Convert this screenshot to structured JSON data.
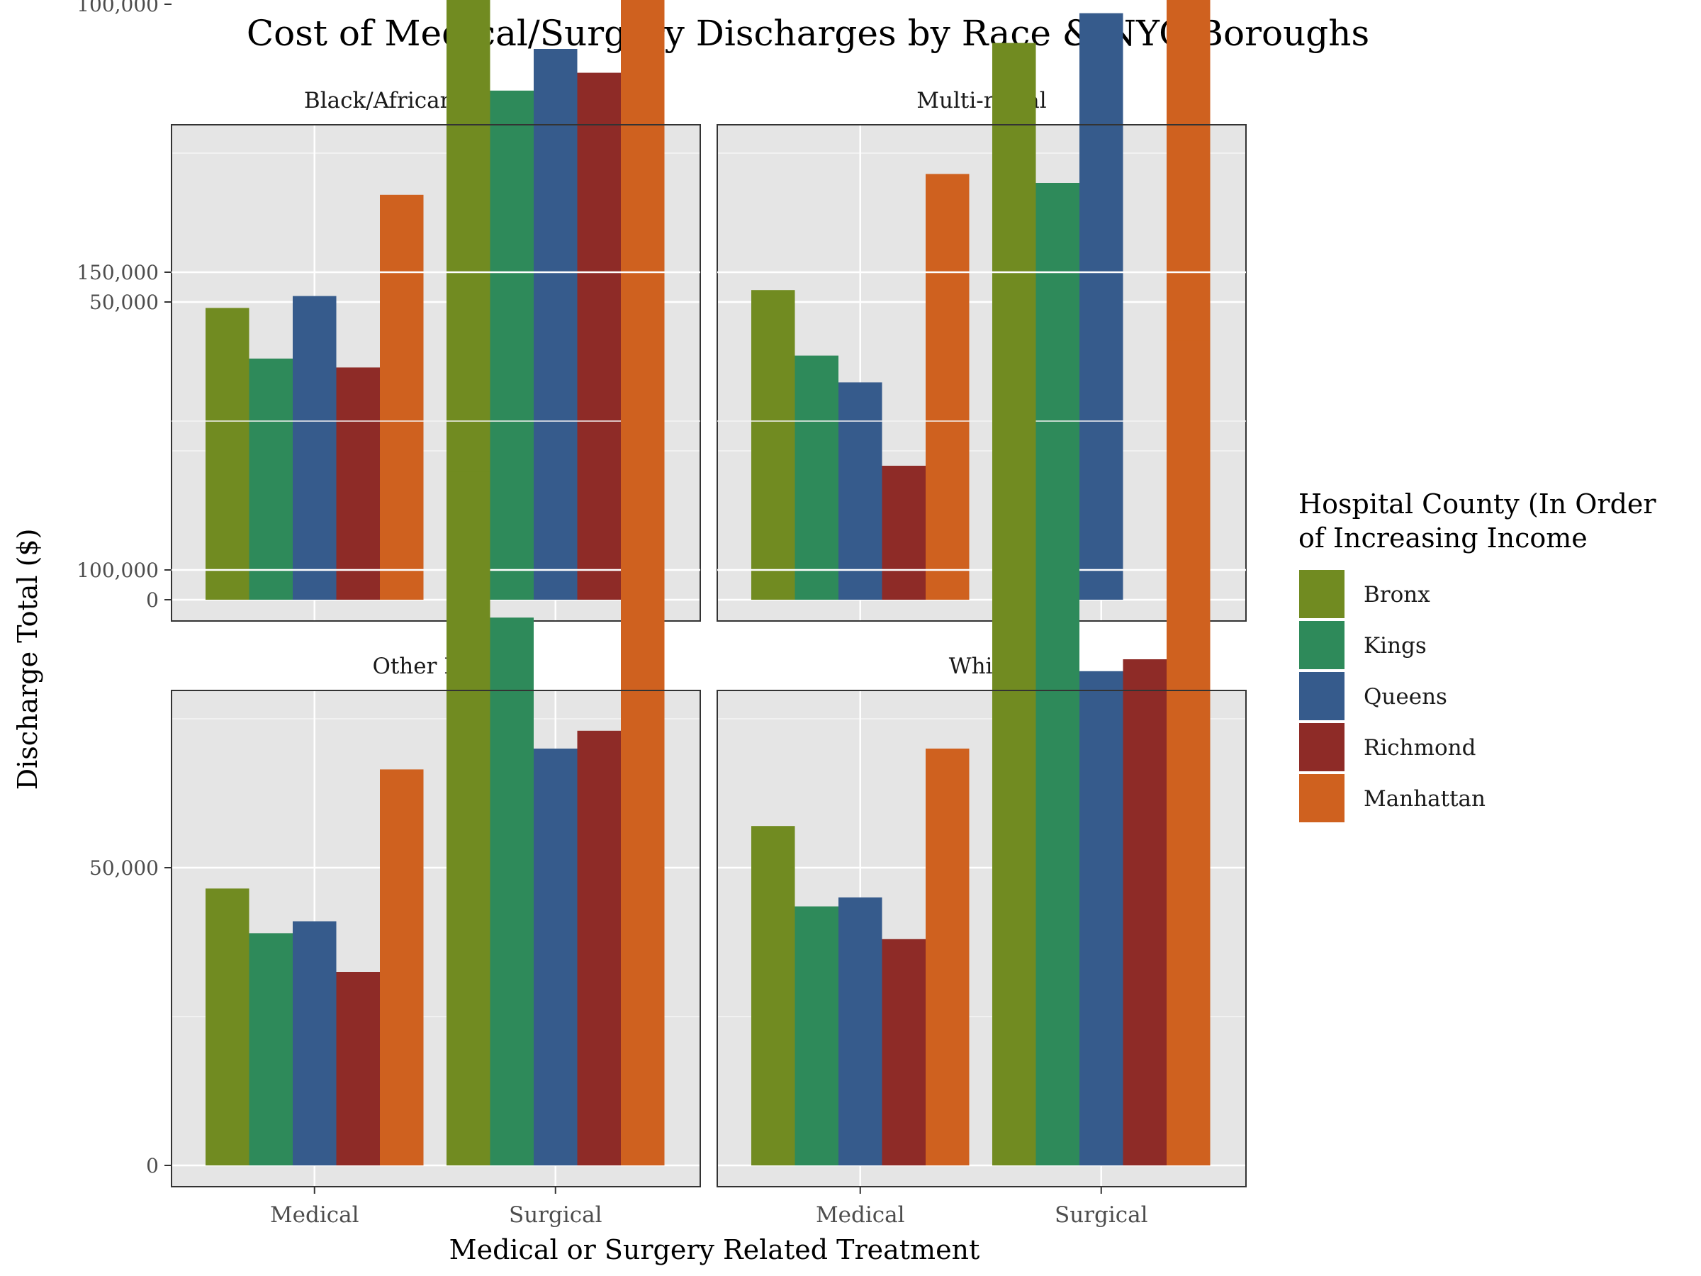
{
  "title": "Cost of Medical/Surgery Discharges by Race & NYC Boroughs",
  "xlabel": "Medical or Surgery Related Treatment",
  "ylabel": "Discharge Total ($)",
  "legend": {
    "title_line1": "Hospital County (In Order",
    "title_line2": "of Increasing Income"
  },
  "colors": {
    "Bronx": "#718b21",
    "Kings": "#2e8a5a",
    "Queens": "#365b8c",
    "Richmond": "#8e2b27",
    "Manhattan": "#cf611f"
  },
  "chart_data": {
    "type": "bar",
    "title": "Cost of Medical/Surgery Discharges by Race & NYC Boroughs",
    "xlabel": "Medical or Surgery Related Treatment",
    "ylabel": "Discharge Total ($)",
    "ylim": [
      0,
      160000
    ],
    "yticks": [
      0,
      50000,
      100000,
      150000
    ],
    "ytick_labels": [
      "0",
      "50,000",
      "100,000",
      "150,000"
    ],
    "categories": [
      "Medical",
      "Surgical"
    ],
    "series_names": [
      "Bronx",
      "Kings",
      "Queens",
      "Richmond",
      "Manhattan"
    ],
    "legend_position": "right",
    "grid": true,
    "facets": [
      {
        "label": "Black/African American",
        "values": {
          "Bronx": [
            49000,
            122500
          ],
          "Kings": [
            40500,
            85500
          ],
          "Queens": [
            51000,
            92500
          ],
          "Richmond": [
            39000,
            88500
          ],
          "Manhattan": [
            68000,
            151500
          ]
        }
      },
      {
        "label": "Multi-racial",
        "values": {
          "Bronx": [
            52000,
            93500
          ],
          "Kings": [
            41000,
            70000
          ],
          "Queens": [
            36500,
            98500
          ],
          "Richmond": [
            22500,
            0
          ],
          "Manhattan": [
            71500,
            149500
          ]
        }
      },
      {
        "label": "Other Race",
        "values": {
          "Bronx": [
            46500,
            116500
          ],
          "Kings": [
            39000,
            92000
          ],
          "Queens": [
            41000,
            70000
          ],
          "Richmond": [
            32500,
            73000
          ],
          "Manhattan": [
            66500,
            141500
          ]
        }
      },
      {
        "label": "White",
        "values": {
          "Bronx": [
            57000,
            149000
          ],
          "Kings": [
            43500,
            111000
          ],
          "Queens": [
            45000,
            83000
          ],
          "Richmond": [
            38000,
            85000
          ],
          "Manhattan": [
            70000,
            138500
          ]
        }
      }
    ]
  }
}
